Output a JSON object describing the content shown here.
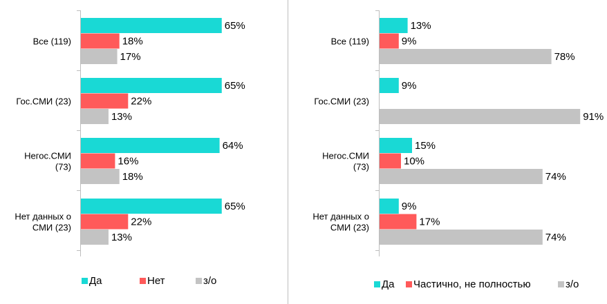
{
  "colors": {
    "yes": "#19d9d5",
    "no": "#ff5a5a",
    "na": "#c3c3c3",
    "axis": "#bdbdbd",
    "divider": "#bdbdbd"
  },
  "chart_data": [
    {
      "type": "bar",
      "orientation": "horizontal",
      "categories": [
        "Все (119)",
        "Гос.СМИ (23)",
        "Негос.СМИ (73)",
        "Нет данных о СМИ (23)"
      ],
      "category_lines": [
        [
          "Все (119)"
        ],
        [
          "Гос.СМИ (23)"
        ],
        [
          "Негос.СМИ",
          "(73)"
        ],
        [
          "Нет данных о",
          "СМИ (23)"
        ]
      ],
      "series": [
        {
          "name": "Да",
          "values": [
            65,
            65,
            64,
            65
          ],
          "labels": [
            "65%",
            "65%",
            "64%",
            "65%"
          ]
        },
        {
          "name": "Нет",
          "values": [
            18,
            22,
            16,
            22
          ],
          "labels": [
            "18%",
            "22%",
            "16%",
            "22%"
          ]
        },
        {
          "name": "з/о",
          "values": [
            17,
            13,
            18,
            13
          ],
          "labels": [
            "17%",
            "13%",
            "18%",
            "13%"
          ]
        }
      ],
      "xlim": [
        0,
        100
      ],
      "legend_position": "bottom"
    },
    {
      "type": "bar",
      "orientation": "horizontal",
      "categories": [
        "Все (119)",
        "Гос.СМИ (23)",
        "Негос.СМИ (73)",
        "Нет данных о СМИ (23)"
      ],
      "category_lines": [
        [
          "Все (119)"
        ],
        [
          "Гос.СМИ (23)"
        ],
        [
          "Негос.СМИ",
          "(73)"
        ],
        [
          "Нет данных о",
          "СМИ (23)"
        ]
      ],
      "series": [
        {
          "name": "Да",
          "values": [
            13,
            9,
            15,
            9
          ],
          "labels": [
            "13%",
            "9%",
            "15%",
            "9%"
          ]
        },
        {
          "name": "Частично, не полностью",
          "values": [
            9,
            0,
            10,
            17
          ],
          "labels": [
            "9%",
            "",
            "10%",
            "17%"
          ]
        },
        {
          "name": "з/о",
          "values": [
            78,
            91,
            74,
            74
          ],
          "labels": [
            "78%",
            "91%",
            "74%",
            "74%"
          ]
        }
      ],
      "xlim": [
        0,
        100
      ],
      "legend_position": "bottom"
    }
  ]
}
